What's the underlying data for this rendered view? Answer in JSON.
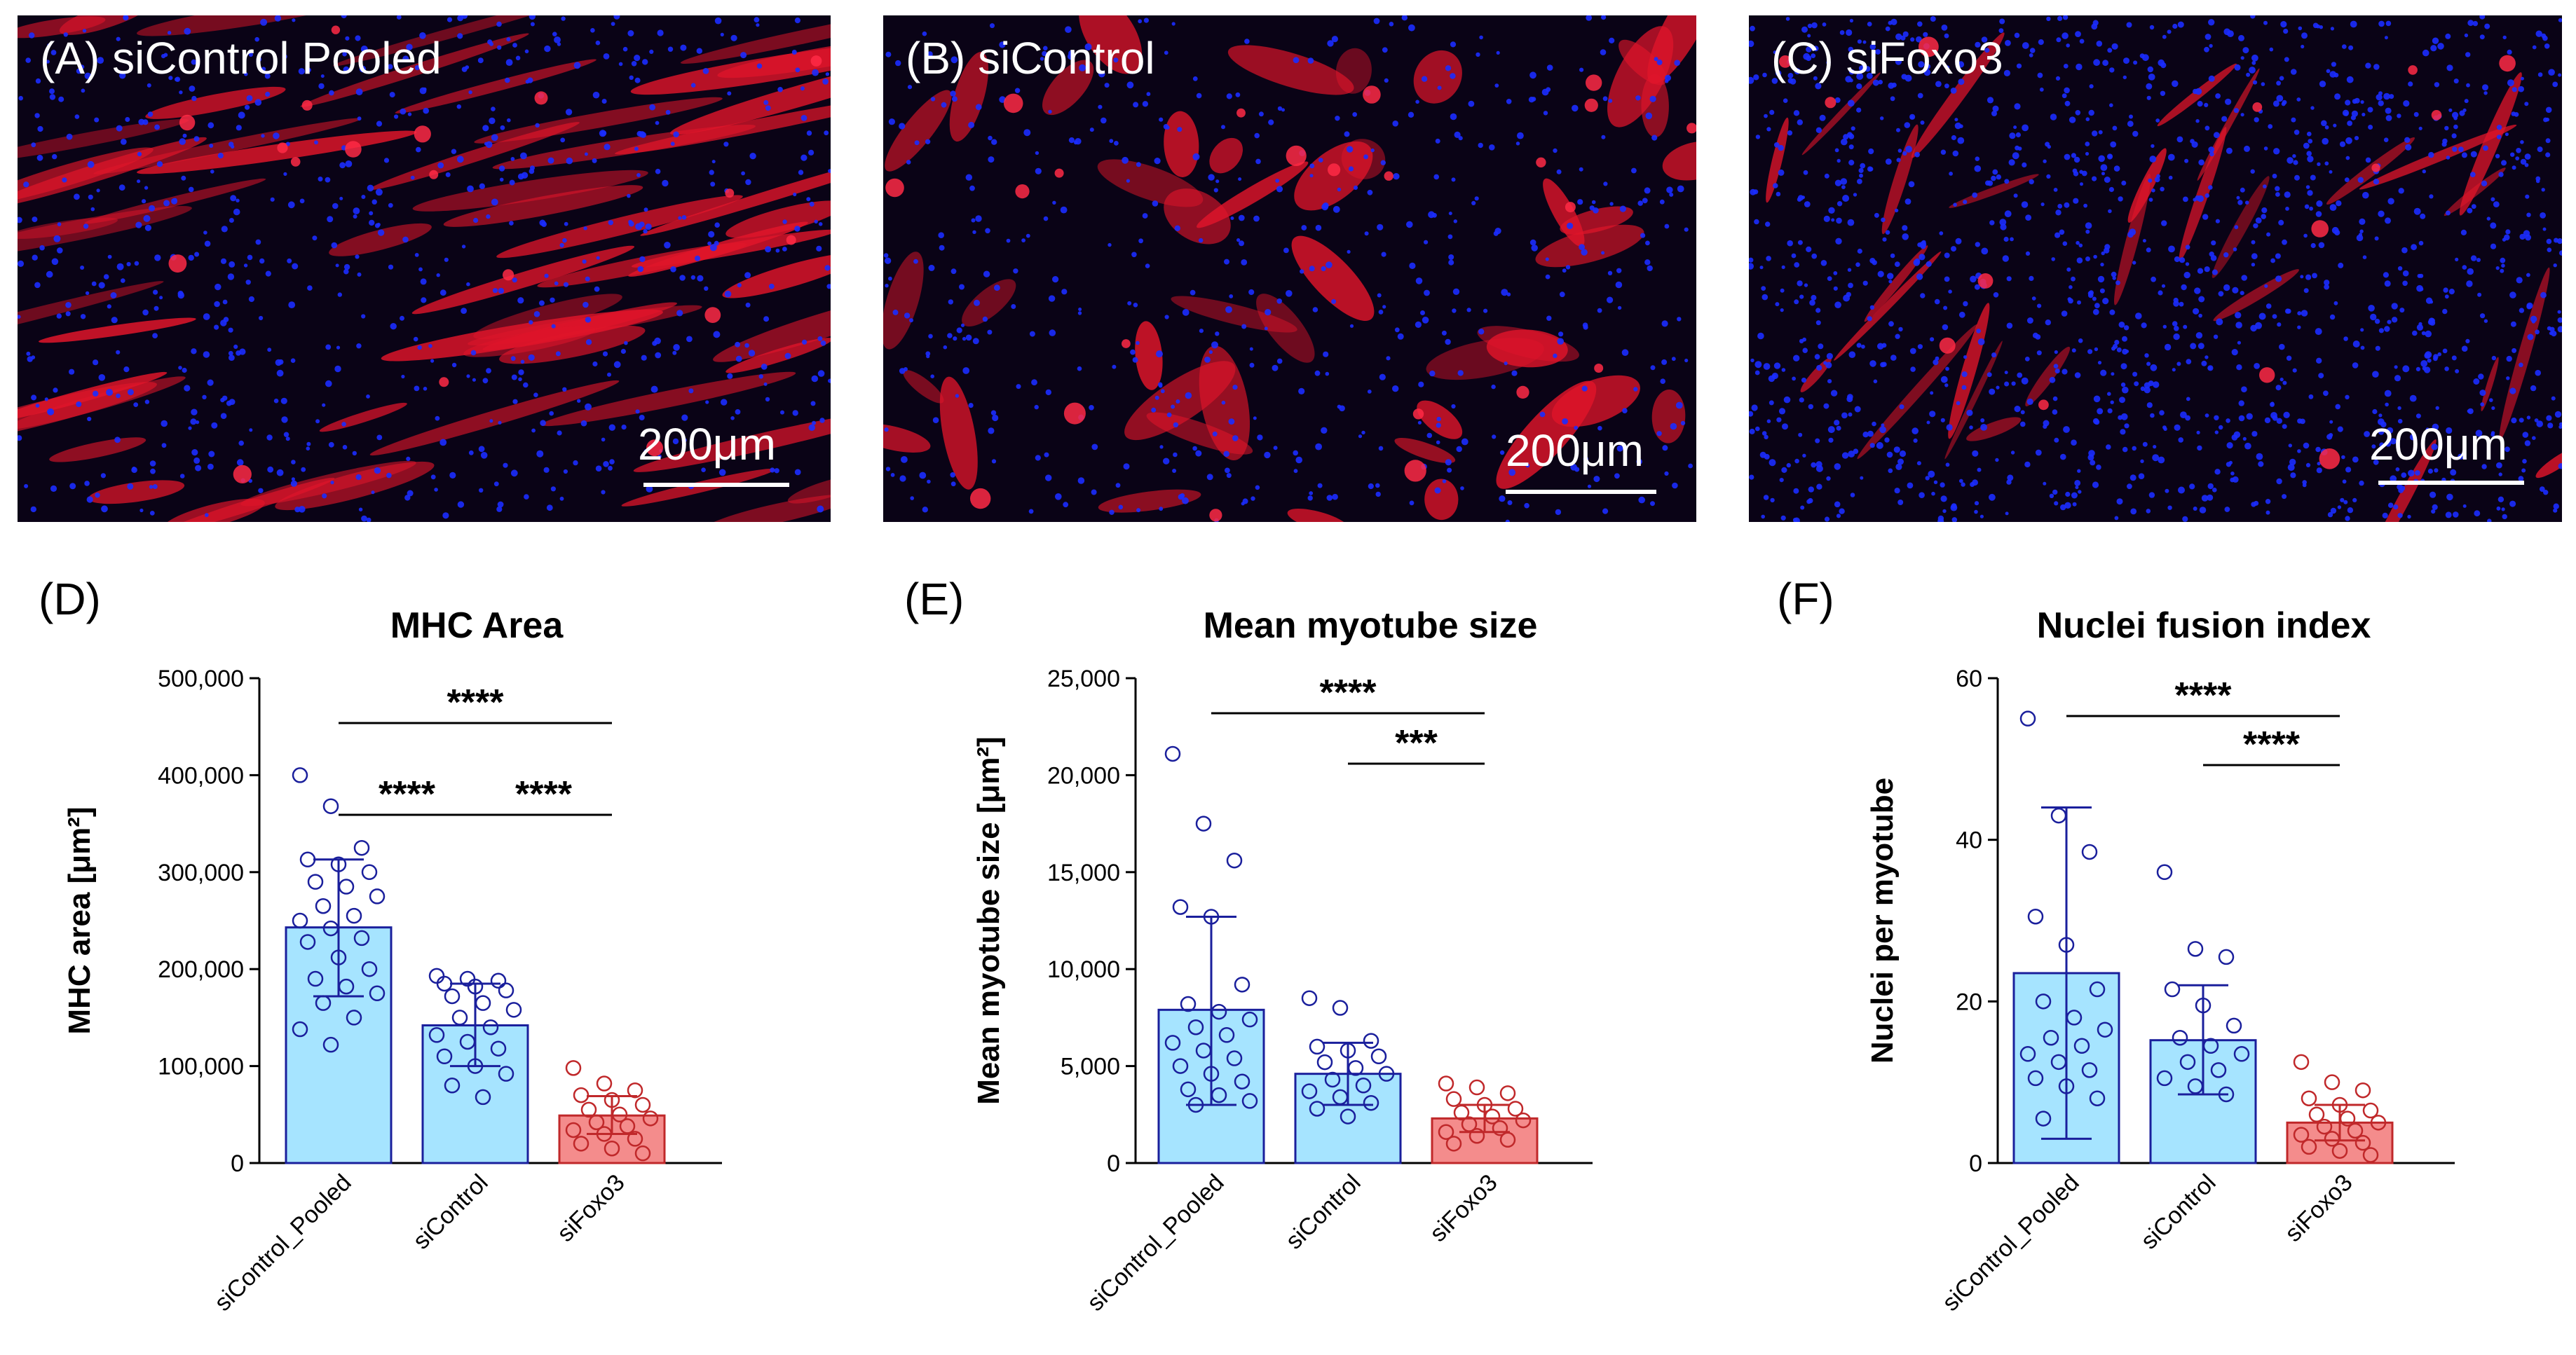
{
  "micrographs": [
    {
      "label": "(A) siControl Pooled",
      "scale_bar": "200μm"
    },
    {
      "label": "(B) siControl",
      "scale_bar": "200μm"
    },
    {
      "label": "(C) siFoxo3",
      "scale_bar": "200μm"
    }
  ],
  "colors": {
    "control_fill": "#a6e4ff",
    "control_stroke": "#1a1f9c",
    "foxo_fill": "#f48c8c",
    "foxo_stroke": "#c0282a",
    "nuclei": "#1b2cff",
    "myotube": "#e0152a"
  },
  "chart_data": [
    {
      "panel": "(D)",
      "type": "bar",
      "title": "MHC Area",
      "ylabel": "MHC area [μm²]",
      "ylim": [
        0,
        500000
      ],
      "yticks": [
        "0",
        "100,000",
        "200,000",
        "300,000",
        "400,000",
        "500,000"
      ],
      "ytick_values": [
        0,
        100000,
        200000,
        300000,
        400000,
        500000
      ],
      "categories": [
        "siControl_Pooled",
        "siControl",
        "siFoxo3"
      ],
      "values": [
        243000,
        142000,
        49000
      ],
      "error": [
        [
          172000,
          313000
        ],
        [
          100000,
          185000
        ],
        [
          30000,
          69000
        ]
      ],
      "points": [
        [
          400000,
          368000,
          325000,
          313000,
          308000,
          300000,
          290000,
          285000,
          275000,
          265000,
          255000,
          250000,
          242000,
          232000,
          228000,
          212000,
          200000,
          190000,
          182000,
          175000,
          165000,
          150000,
          138000,
          122000
        ],
        [
          193000,
          190000,
          188000,
          185000,
          182000,
          178000,
          172000,
          165000,
          158000,
          150000,
          140000,
          132000,
          125000,
          118000,
          110000,
          100000,
          92000,
          80000,
          68000
        ],
        [
          98000,
          82000,
          75000,
          70000,
          65000,
          60000,
          55000,
          50000,
          46000,
          42000,
          38000,
          34000,
          30000,
          25000,
          20000,
          15000,
          10000
        ]
      ],
      "significance": [
        {
          "from": 0,
          "to": 2,
          "label": "****"
        },
        {
          "from": 0,
          "to": 1,
          "label": "****"
        },
        {
          "from": 1,
          "to": 2,
          "label": "****"
        }
      ]
    },
    {
      "panel": "(E)",
      "type": "bar",
      "title": "Mean myotube size",
      "ylabel": "Mean myotube size [μm²]",
      "ylim": [
        0,
        25000
      ],
      "yticks": [
        "0",
        "5,000",
        "10,000",
        "15,000",
        "20,000",
        "25,000"
      ],
      "ytick_values": [
        0,
        5000,
        10000,
        15000,
        20000,
        25000
      ],
      "categories": [
        "siControl_Pooled",
        "siControl",
        "siFoxo3"
      ],
      "values": [
        7900,
        4600,
        2300
      ],
      "error": [
        [
          3000,
          12700
        ],
        [
          3000,
          6200
        ],
        [
          1600,
          3000
        ]
      ],
      "points": [
        [
          21100,
          17500,
          15600,
          13200,
          12700,
          9200,
          8200,
          7800,
          7400,
          7000,
          6600,
          6200,
          5800,
          5400,
          5000,
          4600,
          4200,
          3800,
          3500,
          3200,
          3000
        ],
        [
          8500,
          8000,
          6300,
          6000,
          5800,
          5500,
          5200,
          4900,
          4600,
          4300,
          4000,
          3700,
          3400,
          3100,
          2800,
          2400
        ],
        [
          4100,
          3900,
          3600,
          3300,
          3000,
          2800,
          2600,
          2400,
          2200,
          2000,
          1800,
          1600,
          1400,
          1200,
          1000
        ]
      ],
      "significance": [
        {
          "from": 0,
          "to": 2,
          "label": "****"
        },
        {
          "from": 1,
          "to": 2,
          "label": "***"
        }
      ]
    },
    {
      "panel": "(F)",
      "type": "bar",
      "title": "Nuclei fusion index",
      "ylabel": "Nuclei per myotube",
      "ylim": [
        0,
        60
      ],
      "yticks": [
        "0",
        "20",
        "40",
        "60"
      ],
      "ytick_values": [
        0,
        20,
        40,
        60
      ],
      "categories": [
        "siControl_Pooled",
        "siControl",
        "siFoxo3"
      ],
      "values": [
        23.5,
        15.2,
        5.0
      ],
      "error": [
        [
          3,
          44
        ],
        [
          8.5,
          22
        ],
        [
          2.8,
          7.2
        ]
      ],
      "points": [
        [
          55,
          43,
          38.5,
          30.5,
          27,
          21.5,
          20,
          18,
          16.5,
          15.5,
          14.5,
          13.5,
          12.5,
          11.5,
          10.5,
          9.5,
          8,
          5.5
        ],
        [
          36,
          26.5,
          25.5,
          21.5,
          19.5,
          17,
          15.5,
          14.5,
          13.5,
          12.5,
          11.5,
          10.5,
          9.5,
          8.5
        ],
        [
          12.5,
          10,
          9,
          8,
          7.2,
          6.5,
          6,
          5.5,
          5,
          4.5,
          4,
          3.5,
          3,
          2.5,
          2,
          1.5,
          1
        ]
      ],
      "significance": [
        {
          "from": 0,
          "to": 2,
          "label": "****"
        },
        {
          "from": 1,
          "to": 2,
          "label": "****"
        }
      ]
    }
  ]
}
